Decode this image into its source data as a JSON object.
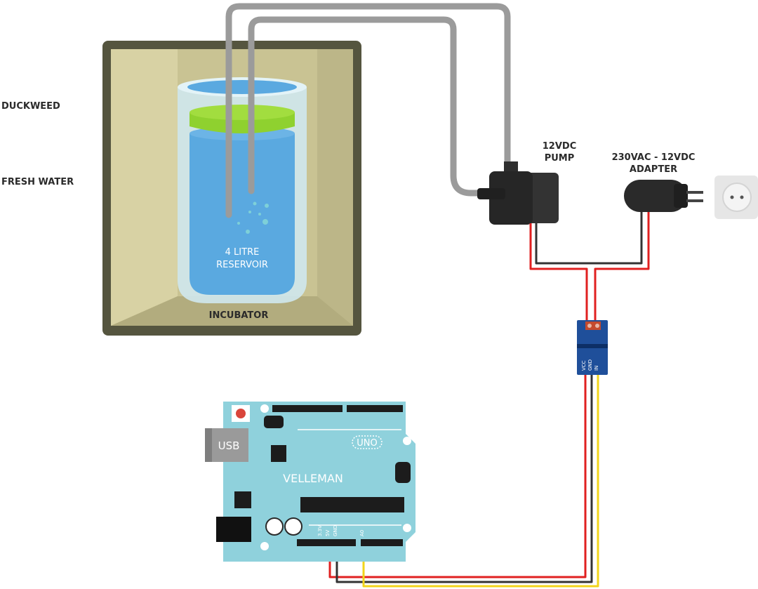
{
  "labels": {
    "duckweed": "DUCKWEED",
    "fresh_water": "FRESH WATER",
    "reservoir_line1": "4 LITRE",
    "reservoir_line2": "RESERVOIR",
    "incubator": "INCUBATOR",
    "pump_line1": "12VDC",
    "pump_line2": "PUMP",
    "adapter_line1": "230VAC - 12VDC",
    "adapter_line2": "ADAPTER"
  },
  "board": {
    "brand": "VELLEMAN",
    "model": "UNO",
    "usb": "USB",
    "pin_33v": "3.3V",
    "pin_5v": "5V",
    "pin_gnd": "GND",
    "pin_a0": "A0"
  },
  "sensor_pins": {
    "vcc": "VCC",
    "gnd": "GND",
    "in": "IN"
  },
  "colors": {
    "incubator_frame": "#55553f",
    "incubator_fill": "#c9c393",
    "water": "#5aa9e0",
    "duckweed": "#8fd12f",
    "tube": "#9b9b9b",
    "pump": "#333333",
    "board": "#8fd1dc",
    "sensor_board": "#1f4f9a",
    "wire_red": "#e02020",
    "wire_black": "#333333",
    "wire_yellow": "#f2d51b"
  }
}
